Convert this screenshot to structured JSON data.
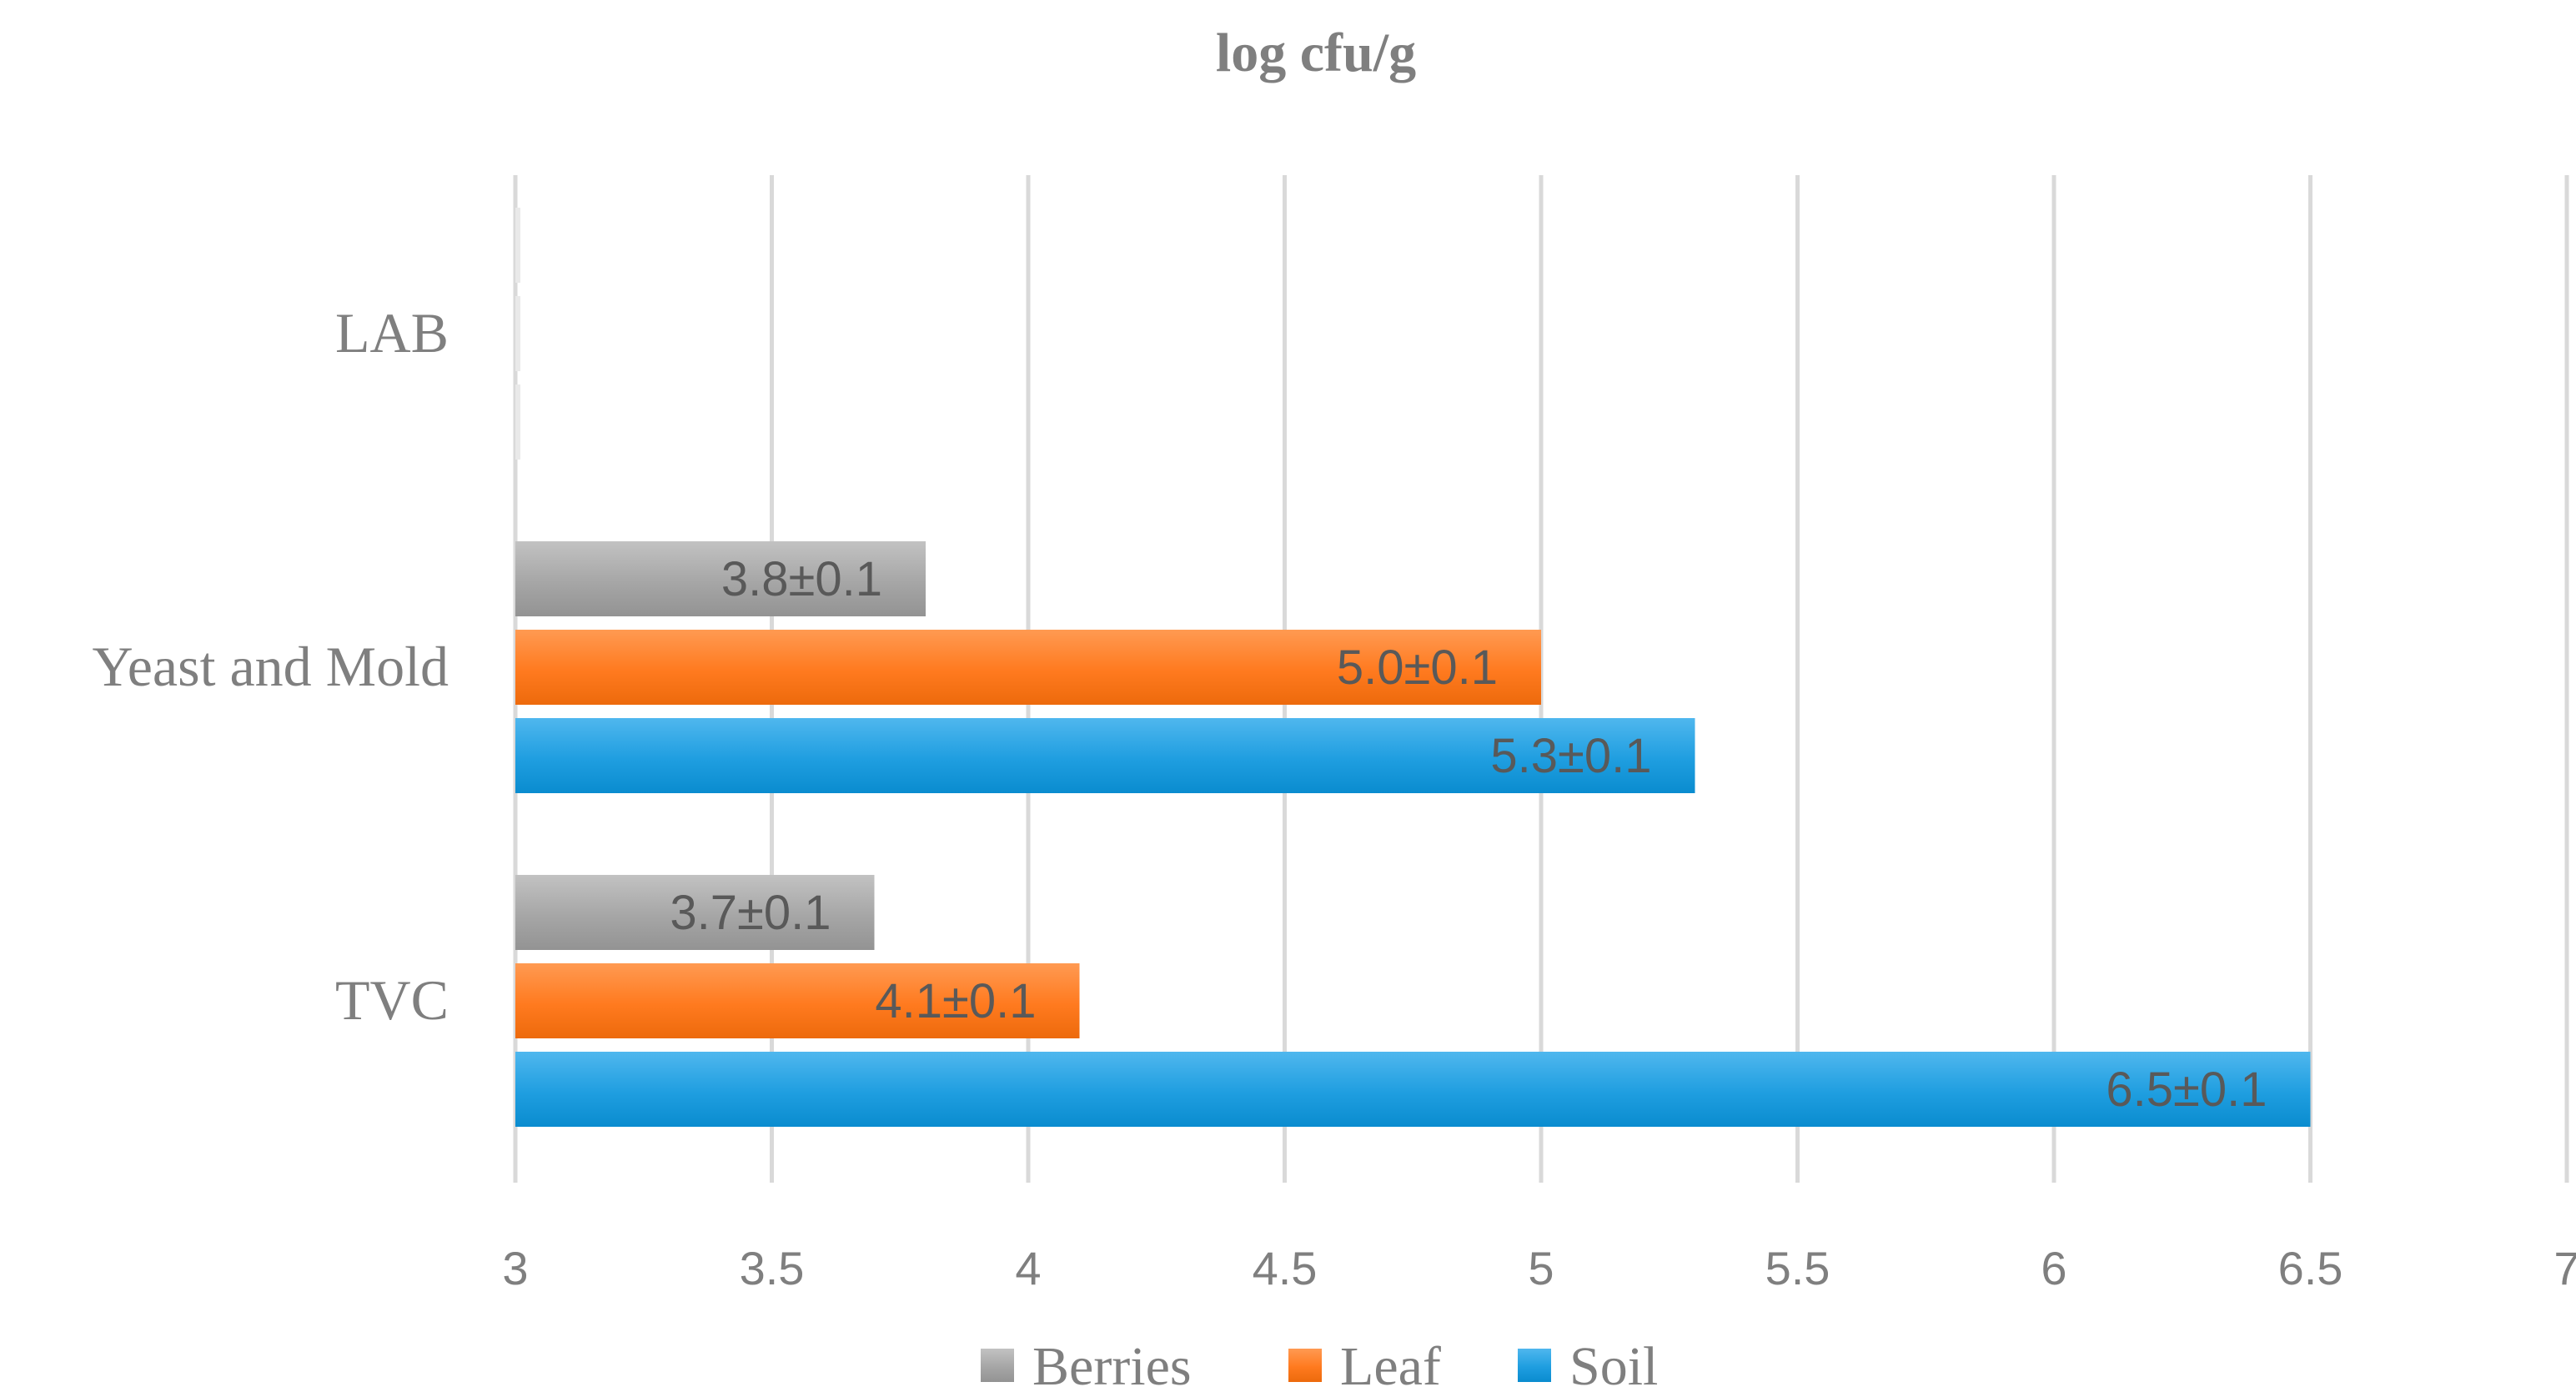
{
  "chart_data": {
    "type": "bar",
    "orientation": "horizontal",
    "title": "log cfu/g",
    "categories": [
      "LAB",
      "Yeast and Mold",
      "TVC"
    ],
    "series": [
      {
        "name": "Berries",
        "color": "#a6a6a6",
        "values": [
          null,
          3.8,
          3.7
        ],
        "labels": [
          "",
          "3.8±0.1",
          "3.7±0.1"
        ]
      },
      {
        "name": "Leaf",
        "color": "#ff7a1f",
        "values": [
          null,
          5.0,
          4.1
        ],
        "labels": [
          "",
          "5.0±0.1",
          "4.1±0.1"
        ]
      },
      {
        "name": "Soil",
        "color": "#1f9ee0",
        "values": [
          null,
          5.3,
          6.5
        ],
        "labels": [
          "",
          "5.3±0.1",
          "6.5±0.1"
        ]
      }
    ],
    "xlim": [
      3,
      7
    ],
    "xticks": [
      "3",
      "3.5",
      "4",
      "4.5",
      "5",
      "5.5",
      "6",
      "6.5",
      "7"
    ],
    "grid": true,
    "legend_position": "bottom"
  }
}
